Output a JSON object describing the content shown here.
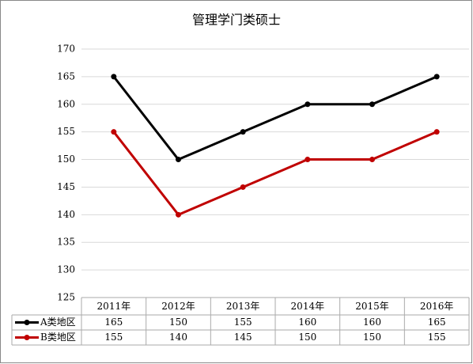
{
  "chart_data": {
    "type": "line",
    "title": "管理学门类硕士",
    "categories": [
      "2011年",
      "2012年",
      "2013年",
      "2014年",
      "2015年",
      "2016年"
    ],
    "series": [
      {
        "name": "A类地区",
        "color": "#000000",
        "values": [
          165,
          150,
          155,
          160,
          160,
          165
        ]
      },
      {
        "name": "B类地区",
        "color": "#c00000",
        "values": [
          155,
          140,
          145,
          150,
          150,
          155
        ]
      }
    ],
    "ylim": [
      125,
      170
    ],
    "yticks": [
      125,
      130,
      135,
      140,
      145,
      150,
      155,
      160,
      165,
      170
    ],
    "grid": true
  }
}
